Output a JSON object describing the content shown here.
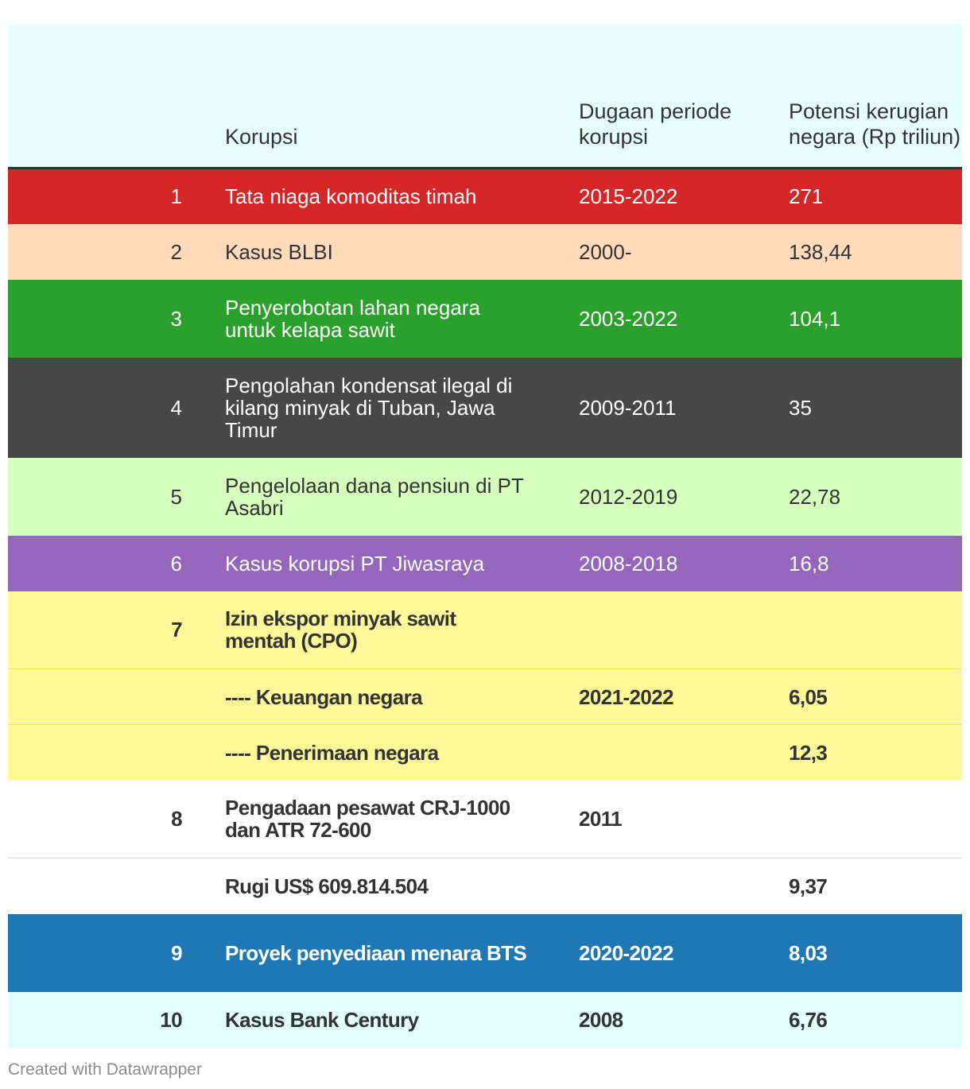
{
  "chart_data": {
    "type": "table",
    "columns": [
      "",
      "Korupsi",
      "Dugaan periode korupsi",
      "Potensi kerugian negara (Rp triliun)"
    ],
    "rows": [
      {
        "rank": "1",
        "name": "Tata niaga komoditas timah",
        "period": "2015-2022",
        "loss": "271",
        "bg": "#d62728",
        "fg": "#ffffff",
        "bold": false,
        "height": 70
      },
      {
        "rank": "2",
        "name": "Kasus BLBI",
        "period": "2000-",
        "loss": "138,44",
        "bg": "#ffdbbc",
        "fg": "#333333",
        "bold": false,
        "height": 70
      },
      {
        "rank": "3",
        "name": "Penyerobotan lahan negara untuk kelapa sawit",
        "period": "2003-2022",
        "loss": "104,1",
        "bg": "#2ca02c",
        "fg": "#ffffff",
        "bold": false,
        "height": 98
      },
      {
        "rank": "4",
        "name": "Pengolahan kondensat ilegal di kilang minyak di Tuban, Jawa Timur",
        "period": "2009-2011",
        "loss": "35",
        "bg": "#474747",
        "fg": "#ffffff",
        "bold": false,
        "height": 126
      },
      {
        "rank": "5",
        "name": "Pengelolaan dana pensiun di PT Asabri",
        "period": "2012-2019",
        "loss": "22,78",
        "bg": "#d6ffbe",
        "fg": "#333333",
        "bold": false,
        "height": 98
      },
      {
        "rank": "6",
        "name": "Kasus korupsi PT Jiwasraya",
        "period": "2008-2018",
        "loss": "16,8",
        "bg": "#9467bd",
        "fg": "#ffffff",
        "bold": false,
        "height": 70
      },
      {
        "rank": "7",
        "name": "Izin ekspor minyak sawit mentah (CPO)",
        "period": "",
        "loss": "",
        "bg": "#fff899",
        "fg": "#333333",
        "bold": true,
        "divider": true,
        "height": 98
      },
      {
        "rank": "",
        "name": "---- Keuangan negara",
        "period": "2021-2022",
        "loss": "6,05",
        "bg": "#fff899",
        "fg": "#333333",
        "bold": true,
        "divider": true,
        "height": 70
      },
      {
        "rank": "",
        "name": "---- Penerimaan negara",
        "period": "",
        "loss": "12,3",
        "bg": "#fff899",
        "fg": "#333333",
        "bold": true,
        "height": 70
      },
      {
        "rank": "8",
        "name": "Pengadaan pesawat CRJ-1000 dan ATR 72-600",
        "period": "2011",
        "loss": "",
        "bg": "#ffffff",
        "fg": "#333333",
        "bold": true,
        "divider": true,
        "height": 98
      },
      {
        "rank": "",
        "name": "Rugi US$ 609.814.504",
        "period": "",
        "loss": "9,37",
        "bg": "#ffffff",
        "fg": "#333333",
        "bold": true,
        "height": 70
      },
      {
        "rank": "9",
        "name": "Proyek penyediaan menara BTS",
        "period": "2020-2022",
        "loss": "8,03",
        "bg": "#1f77b4",
        "fg": "#ffffff",
        "bold": true,
        "height": 98
      },
      {
        "rank": "10",
        "name": "Kasus Bank Century",
        "period": "2008",
        "loss": "6,76",
        "bg": "#e0fffd",
        "fg": "#333333",
        "bold": true,
        "height": 70
      }
    ]
  },
  "footer": "Created with Datawrapper"
}
